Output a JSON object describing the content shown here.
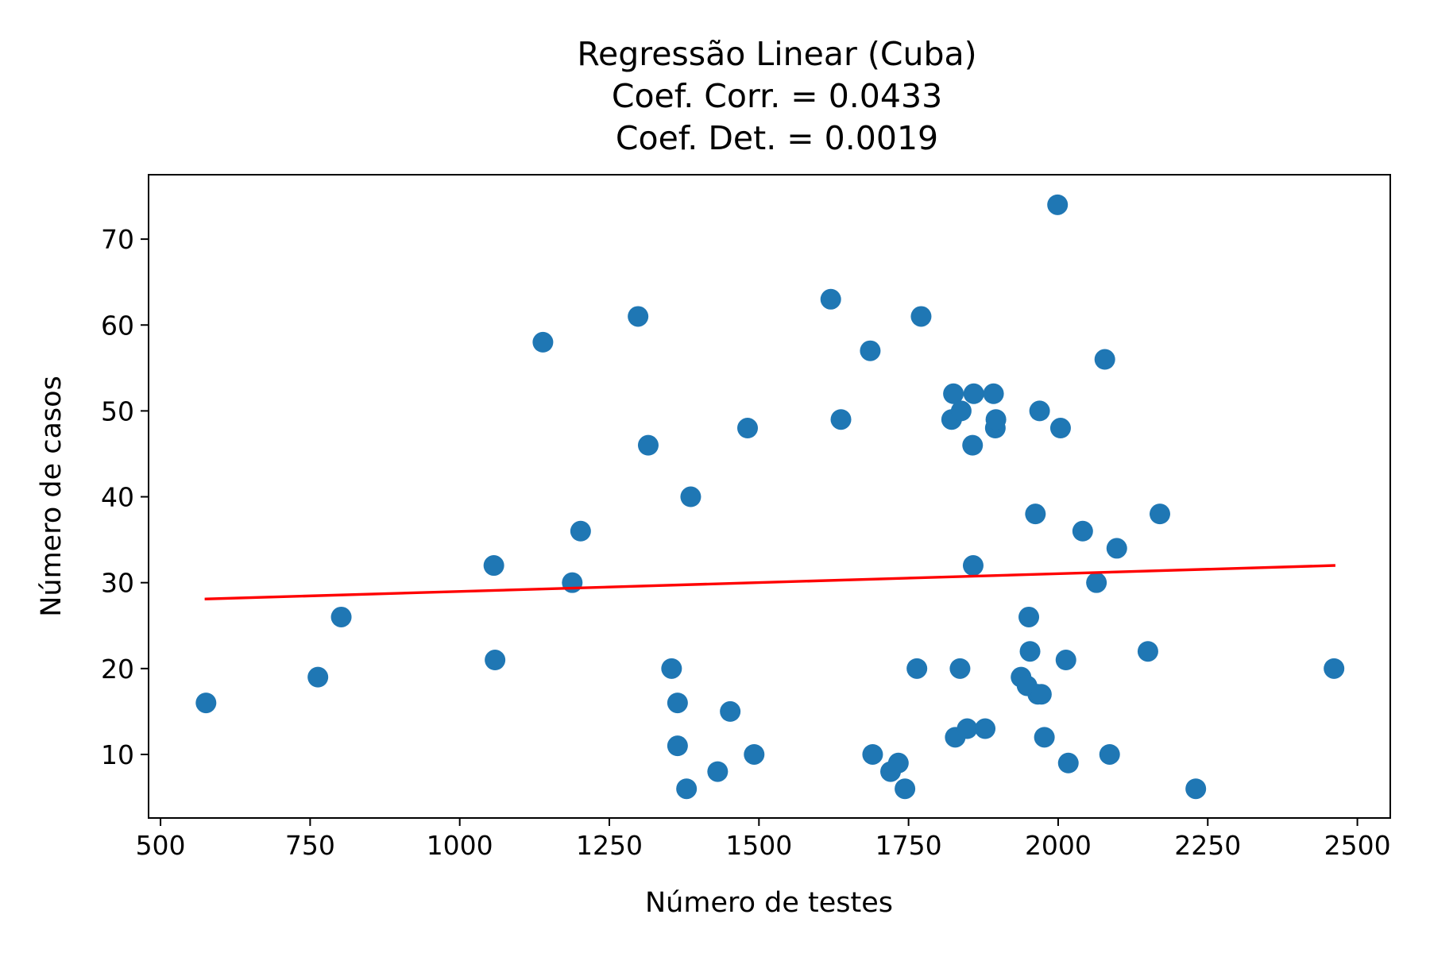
{
  "chart_data": {
    "type": "scatter",
    "title_lines": [
      "Regressão Linear (Cuba)",
      "Coef. Corr. = 0.0433",
      "Coef. Det. = 0.0019"
    ],
    "xlabel": "Número de testes",
    "ylabel": "Número de casos",
    "xlim": [
      480,
      2555
    ],
    "ylim": [
      2.6,
      77.5
    ],
    "xticks": [
      500,
      750,
      1000,
      1250,
      1500,
      1750,
      2000,
      2250,
      2500
    ],
    "yticks": [
      10,
      20,
      30,
      40,
      50,
      60,
      70
    ],
    "grid": false,
    "point_color": "#1f77b4",
    "line_color": "#ff0000",
    "points": [
      [
        576,
        16
      ],
      [
        763,
        19
      ],
      [
        802,
        26
      ],
      [
        1057,
        32
      ],
      [
        1059,
        21
      ],
      [
        1139,
        58
      ],
      [
        1188,
        30
      ],
      [
        1202,
        36
      ],
      [
        1298,
        61
      ],
      [
        1315,
        46
      ],
      [
        1354,
        20
      ],
      [
        1364,
        16
      ],
      [
        1364,
        11
      ],
      [
        1379,
        6
      ],
      [
        1386,
        40
      ],
      [
        1431,
        8
      ],
      [
        1452,
        15
      ],
      [
        1481,
        48
      ],
      [
        1492,
        10
      ],
      [
        1620,
        63
      ],
      [
        1637,
        49
      ],
      [
        1686,
        57
      ],
      [
        1690,
        10
      ],
      [
        1720,
        8
      ],
      [
        1733,
        9
      ],
      [
        1744,
        6
      ],
      [
        1764,
        20
      ],
      [
        1771,
        61
      ],
      [
        1822,
        49
      ],
      [
        1825,
        52
      ],
      [
        1828,
        12
      ],
      [
        1836,
        20
      ],
      [
        1838,
        50
      ],
      [
        1848,
        13
      ],
      [
        1857,
        46
      ],
      [
        1858,
        32
      ],
      [
        1859,
        52
      ],
      [
        1878,
        13
      ],
      [
        1892,
        52
      ],
      [
        1895,
        48
      ],
      [
        1896,
        49
      ],
      [
        1938,
        19
      ],
      [
        1948,
        18
      ],
      [
        1951,
        26
      ],
      [
        1953,
        22
      ],
      [
        1962,
        38
      ],
      [
        1966,
        17
      ],
      [
        1969,
        50
      ],
      [
        1972,
        17
      ],
      [
        1977,
        12
      ],
      [
        1999,
        74
      ],
      [
        2004,
        48
      ],
      [
        2013,
        21
      ],
      [
        2017,
        9
      ],
      [
        2041,
        36
      ],
      [
        2064,
        30
      ],
      [
        2078,
        56
      ],
      [
        2086,
        10
      ],
      [
        2098,
        34
      ],
      [
        2150,
        22
      ],
      [
        2170,
        38
      ],
      [
        2230,
        6
      ],
      [
        2461,
        20
      ]
    ],
    "regression_line": [
      [
        576,
        28.1
      ],
      [
        2461,
        32.0
      ]
    ]
  }
}
